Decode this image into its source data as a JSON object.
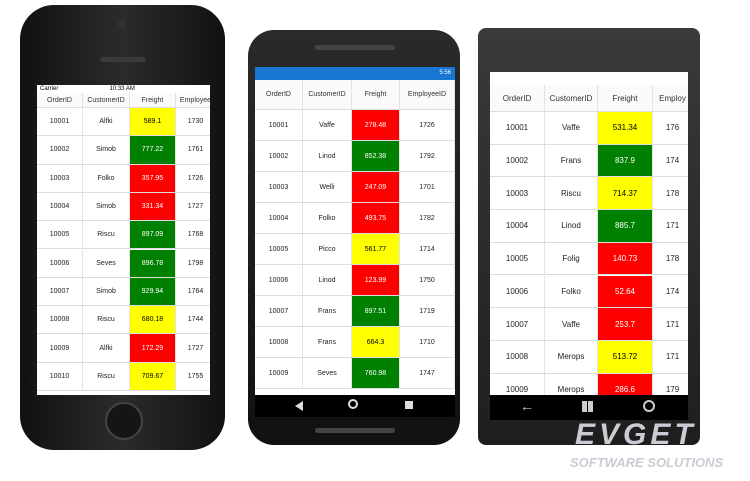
{
  "devices": [
    {
      "status_left": "Carrier",
      "status_time": "10:33 AM",
      "columns": [
        "OrderID",
        "CustomerID",
        "Freight",
        "Employee"
      ],
      "rows": [
        [
          "10001",
          "Alfki",
          "589.1",
          "1730"
        ],
        [
          "10002",
          "Simob",
          "777.22",
          "1761"
        ],
        [
          "10003",
          "Folko",
          "357.95",
          "1726"
        ],
        [
          "10004",
          "Simob",
          "331.34",
          "1727"
        ],
        [
          "10005",
          "Riscu",
          "897.09",
          "1768"
        ],
        [
          "10006",
          "Seves",
          "896.78",
          "1798"
        ],
        [
          "10007",
          "Simob",
          "929.94",
          "1764"
        ],
        [
          "10008",
          "Riscu",
          "680.18",
          "1744"
        ],
        [
          "10009",
          "Alfki",
          "172.29",
          "1727"
        ],
        [
          "10010",
          "Riscu",
          "709.67",
          "1755"
        ]
      ],
      "freight_colors": [
        "#ffff00",
        "#008000",
        "#ff0000",
        "#ff0000",
        "#008000",
        "#008000",
        "#008000",
        "#ffff00",
        "#ff0000",
        "#ffff00"
      ]
    },
    {
      "status_time": "5:56",
      "columns": [
        "OrderID",
        "CustomerID",
        "Freight",
        "EmployeeID"
      ],
      "rows": [
        [
          "10001",
          "Vaffe",
          "278.48",
          "1726"
        ],
        [
          "10002",
          "Linod",
          "852.38",
          "1792"
        ],
        [
          "10003",
          "Welli",
          "247.09",
          "1701"
        ],
        [
          "10004",
          "Folko",
          "493.75",
          "1782"
        ],
        [
          "10005",
          "Picco",
          "561.77",
          "1714"
        ],
        [
          "10006",
          "Linod",
          "123.99",
          "1750"
        ],
        [
          "10007",
          "Frans",
          "897.51",
          "1719"
        ],
        [
          "10008",
          "Frans",
          "664.3",
          "1710"
        ],
        [
          "10009",
          "Seves",
          "760.98",
          "1747"
        ]
      ],
      "freight_colors": [
        "#ff0000",
        "#008000",
        "#ff0000",
        "#ff0000",
        "#ffff00",
        "#ff0000",
        "#008000",
        "#ffff00",
        "#008000"
      ]
    },
    {
      "columns": [
        "OrderID",
        "CustomerID",
        "Freight",
        "Employ"
      ],
      "rows": [
        [
          "10001",
          "Vaffe",
          "531.34",
          "176"
        ],
        [
          "10002",
          "Frans",
          "837.9",
          "174"
        ],
        [
          "10003",
          "Riscu",
          "714.37",
          "178"
        ],
        [
          "10004",
          "Linod",
          "885.7",
          "171"
        ],
        [
          "10005",
          "Folig",
          "140.73",
          "178"
        ],
        [
          "10006",
          "Folko",
          "52.64",
          "174"
        ],
        [
          "10007",
          "Vaffe",
          "253.7",
          "171"
        ],
        [
          "10008",
          "Merops",
          "513.72",
          "171"
        ],
        [
          "10009",
          "Merops",
          "286.6",
          "179"
        ]
      ],
      "freight_colors": [
        "#ffff00",
        "#008000",
        "#ffff00",
        "#008000",
        "#ff0000",
        "#ff0000",
        "#ff0000",
        "#ffff00",
        "#ff0000"
      ]
    }
  ],
  "watermark": {
    "brand": "EVGET",
    "tagline": "SOFTWARE SOLUTIONS"
  }
}
